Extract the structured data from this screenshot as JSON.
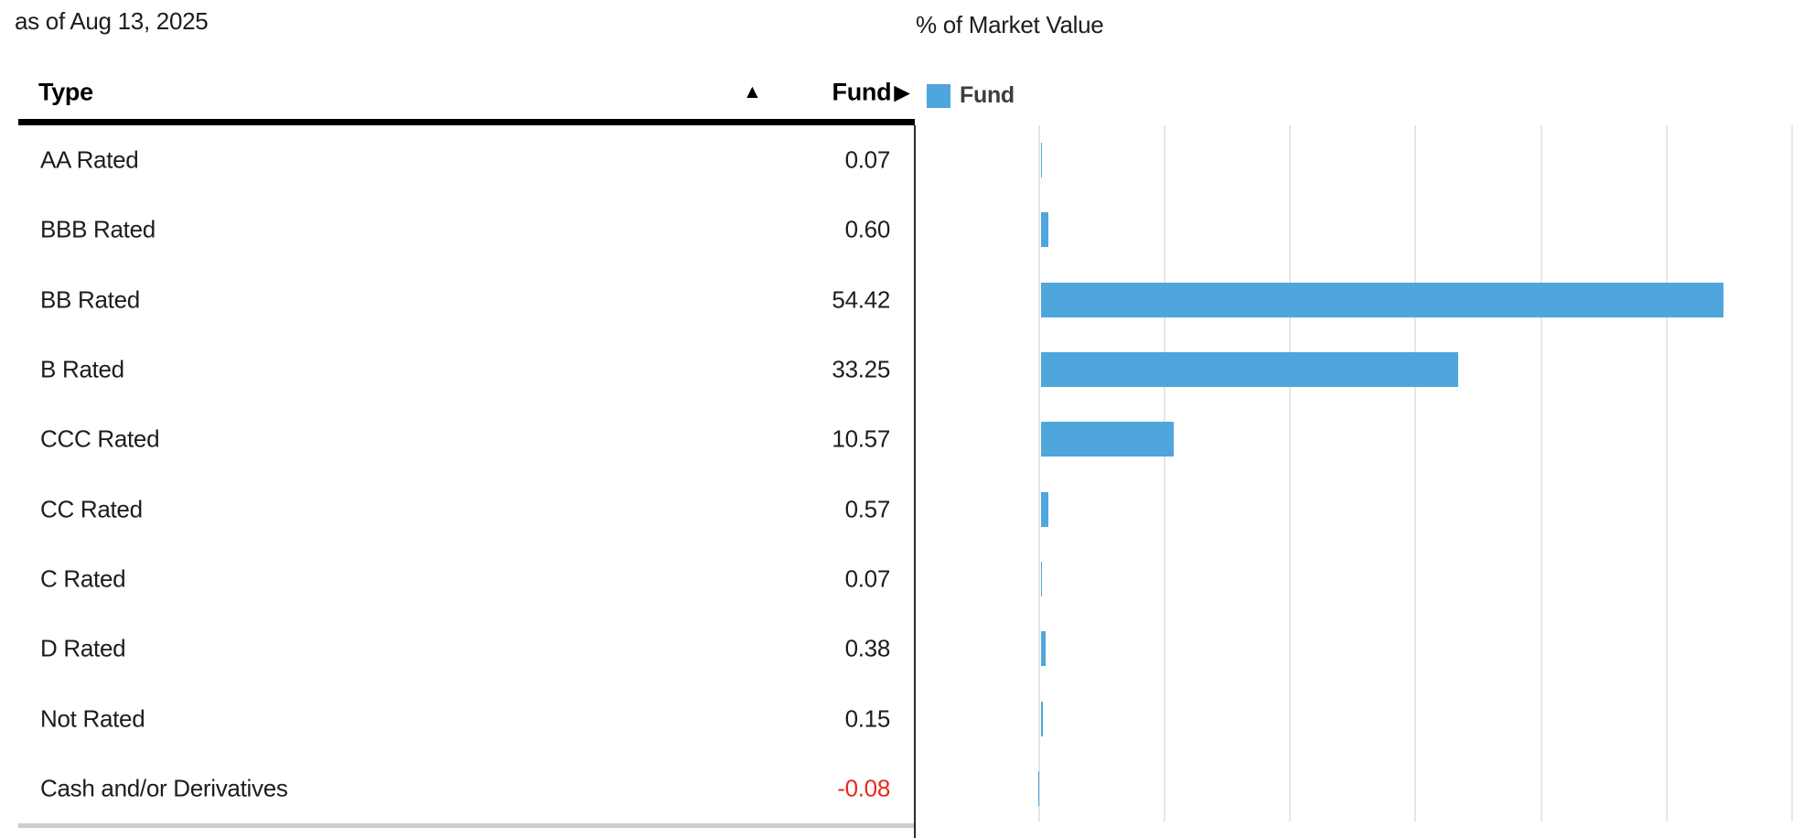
{
  "as_of": "as of Aug 13, 2025",
  "table": {
    "columns": {
      "type": "Type",
      "fund": "Fund"
    },
    "sort_ascending_icon": "▲",
    "fund_more_icon": "▶",
    "rows": [
      {
        "type": "AA Rated",
        "fund": "0.07"
      },
      {
        "type": "BBB Rated",
        "fund": "0.60"
      },
      {
        "type": "BB Rated",
        "fund": "54.42"
      },
      {
        "type": "B Rated",
        "fund": "33.25"
      },
      {
        "type": "CCC Rated",
        "fund": "10.57"
      },
      {
        "type": "CC Rated",
        "fund": "0.57"
      },
      {
        "type": "C Rated",
        "fund": "0.07"
      },
      {
        "type": "D Rated",
        "fund": "0.38"
      },
      {
        "type": "Not Rated",
        "fund": "0.15"
      },
      {
        "type": "Cash and/or Derivatives",
        "fund": "-0.08"
      }
    ]
  },
  "chart": {
    "title": "% of Market Value",
    "legend_label": "Fund"
  },
  "chart_data": {
    "type": "bar",
    "orientation": "horizontal",
    "title": "% of Market Value",
    "categories": [
      "AA Rated",
      "BBB Rated",
      "BB Rated",
      "B Rated",
      "CCC Rated",
      "CC Rated",
      "C Rated",
      "D Rated",
      "Not Rated",
      "Cash and/or Derivatives"
    ],
    "series": [
      {
        "name": "Fund",
        "values": [
          0.07,
          0.6,
          54.42,
          33.25,
          10.57,
          0.57,
          0.07,
          0.38,
          0.15,
          -0.08
        ]
      }
    ],
    "xlim": [
      0,
      60
    ],
    "gridline_step": 10,
    "grid": true,
    "legend_position": "top-left",
    "bar_color": "#4ea6dc"
  },
  "colors": {
    "bar": "#4ea6dc",
    "negative_text": "#e8281e",
    "gridline": "#e6e6e6",
    "text": "#1d1d1d",
    "legend_text": "#3d3d3d"
  }
}
